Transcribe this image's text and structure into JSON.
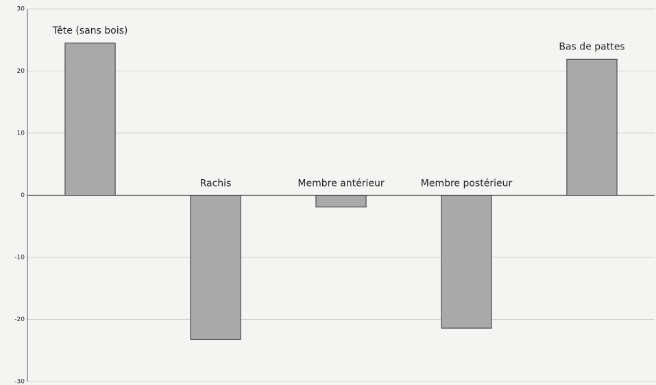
{
  "chart_data": {
    "type": "bar",
    "categories": [
      "Tête (sans bois)",
      "Rachis",
      "Membre antérieur",
      "Membre postérieur",
      "Bas de pattes"
    ],
    "values": [
      24.5,
      -23.2,
      -1.9,
      -21.4,
      21.9
    ],
    "color": "#a9a9a9",
    "ylim": [
      -30,
      30
    ],
    "yticks": [
      -30,
      -20,
      -10,
      0,
      10,
      20,
      30
    ],
    "grid": true
  }
}
